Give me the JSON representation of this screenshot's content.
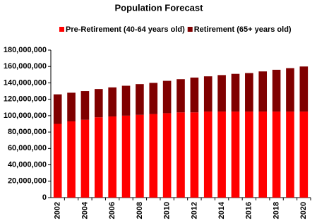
{
  "chart_data": {
    "type": "bar",
    "stacked": true,
    "title": "Population Forecast",
    "categories": [
      "2002",
      null,
      "2004",
      null,
      "2006",
      null,
      "2008",
      null,
      "2010",
      null,
      "2012",
      null,
      "2014",
      null,
      "2016",
      null,
      "2018",
      null,
      "2020"
    ],
    "series": [
      {
        "name": "Pre-Retirement (40-64 years old)",
        "color": "#ff0000",
        "values": [
          90000000,
          93000000,
          95000000,
          98000000,
          99000000,
          100000000,
          101000000,
          102000000,
          103000000,
          104000000,
          104000000,
          105000000,
          105000000,
          105000000,
          105000000,
          105000000,
          105000000,
          105000000,
          105000000
        ]
      },
      {
        "name": "Retirement (65+ years old)",
        "color": "#800000",
        "values": [
          36000000,
          35000000,
          35000000,
          34500000,
          35500000,
          36500000,
          37500000,
          38000000,
          39500000,
          40500000,
          42500000,
          43000000,
          44500000,
          46000000,
          47000000,
          49000000,
          51000000,
          53000000,
          55000000
        ]
      }
    ],
    "ylim": [
      0,
      180000000
    ],
    "yticks": [
      0,
      {
        "value": 20000000,
        "label": "20,000,000"
      },
      {
        "value": 40000000,
        "label": "40,000,000"
      },
      {
        "value": 60000000,
        "label": "60,000,000"
      },
      {
        "value": 80000000,
        "label": "80,000,000"
      },
      {
        "value": 100000000,
        "label": "100,000,000"
      },
      {
        "value": 120000000,
        "label": "120,000,000"
      },
      {
        "value": 140000000,
        "label": "140,000,000"
      },
      {
        "value": 160000000,
        "label": "160,000,000"
      },
      {
        "value": 180000000,
        "label": "180,000,000"
      }
    ],
    "grid": false
  }
}
